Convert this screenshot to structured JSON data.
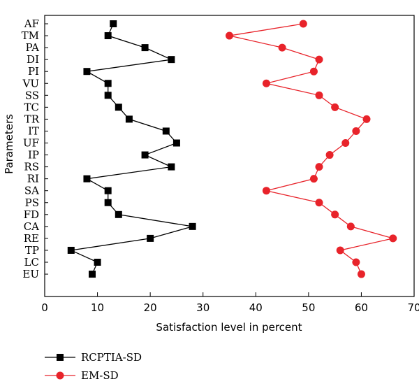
{
  "chart_data": {
    "type": "line",
    "orientation": "horizontal",
    "xlabel": "Satisfaction level in percent",
    "ylabel": "Parameters",
    "xlim": [
      0,
      70
    ],
    "xticks": [
      0,
      10,
      20,
      30,
      40,
      50,
      60,
      70
    ],
    "grid": false,
    "legend_position": "bottom-left",
    "categories": [
      "AF",
      "TM",
      "PA",
      "DI",
      "PI",
      "VU",
      "SS",
      "TC",
      "TR",
      "IT",
      "UF",
      "IP",
      "RS",
      "RI",
      "SA",
      "PS",
      "FD",
      "CA",
      "RE",
      "TP",
      "LC",
      "EU"
    ],
    "series": [
      {
        "name": "RCPTIA-SD",
        "color": "#000000",
        "marker": "square",
        "values": [
          13,
          12,
          19,
          24,
          8,
          12,
          12,
          14,
          16,
          23,
          25,
          19,
          24,
          8,
          12,
          12,
          14,
          28,
          20,
          5,
          10,
          9
        ]
      },
      {
        "name": "EM-SD",
        "color": "#e8232a",
        "marker": "circle",
        "values": [
          49,
          35,
          45,
          52,
          51,
          42,
          52,
          55,
          61,
          59,
          57,
          54,
          52,
          51,
          42,
          52,
          55,
          58,
          66,
          56,
          59,
          60
        ]
      }
    ]
  }
}
